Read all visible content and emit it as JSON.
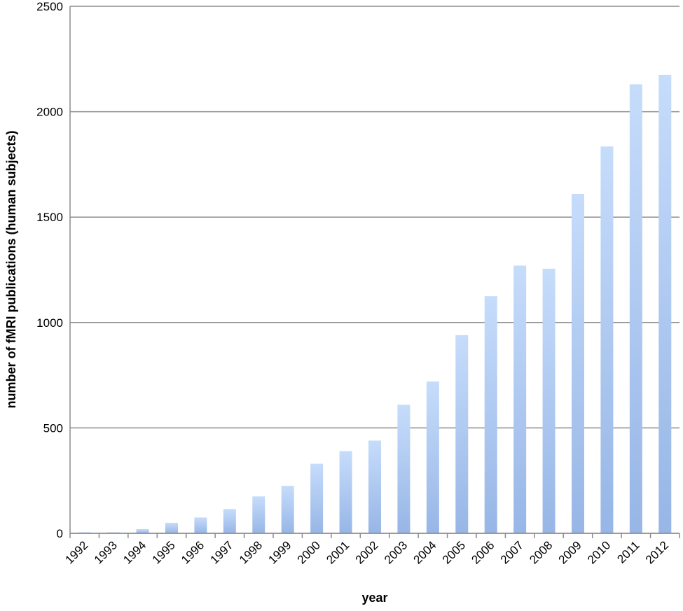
{
  "chart_data": {
    "type": "bar",
    "title": "",
    "xlabel": "year",
    "ylabel": "number of fMRI publications (human subjects)",
    "categories": [
      "1992",
      "1993",
      "1994",
      "1995",
      "1996",
      "1997",
      "1998",
      "1999",
      "2000",
      "2001",
      "2002",
      "2003",
      "2004",
      "2005",
      "2006",
      "2007",
      "2008",
      "2009",
      "2010",
      "2011",
      "2012"
    ],
    "values": [
      5,
      5,
      20,
      50,
      75,
      115,
      175,
      225,
      330,
      390,
      440,
      610,
      720,
      940,
      1125,
      1270,
      1255,
      1610,
      1835,
      2130,
      2175
    ],
    "ylim": [
      0,
      2500
    ],
    "yticks": [
      0,
      500,
      1000,
      1500,
      2000,
      2500
    ],
    "grid": true,
    "legend": "none",
    "colors": {
      "bar_top": "#c6dcfb",
      "bar_bottom": "#97b6e6",
      "grid": "#8c8c8c",
      "axis": "#8c8c8c"
    }
  }
}
